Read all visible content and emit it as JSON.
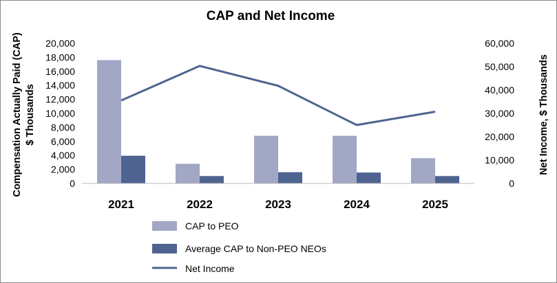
{
  "chart_data": {
    "type": "bar",
    "title": "CAP and Net Income",
    "categories": [
      "2021",
      "2022",
      "2023",
      "2024",
      "2025"
    ],
    "series": [
      {
        "name": "CAP to PEO",
        "type": "bar",
        "axis": "left",
        "color": "#a2a7c6",
        "values": [
          17600,
          2800,
          6800,
          6800,
          3600
        ]
      },
      {
        "name": "Average CAP to Non-PEO NEOs",
        "type": "bar",
        "axis": "left",
        "color": "#4f6391",
        "values": [
          3950,
          1050,
          1600,
          1550,
          1050
        ]
      },
      {
        "name": "Net Income",
        "type": "line",
        "axis": "right",
        "color": "#4f6391",
        "values": [
          35500,
          50300,
          41800,
          25000,
          30700
        ]
      }
    ],
    "y_left": {
      "label_line1": "Compensation Actually Paid (CAP)",
      "label_line2": "$ Thousands",
      "ylim": [
        0,
        20000
      ],
      "ticks": [
        "20,000",
        "18,000",
        "16,000",
        "14,000",
        "12,000",
        "10,000",
        "8,000",
        "6,000",
        "4,000",
        "2,000",
        "0"
      ]
    },
    "y_right": {
      "label": "Net Income, $ Thousands",
      "ylim": [
        0,
        60000
      ],
      "ticks": [
        "60,000",
        "50,000",
        "40,000",
        "30,000",
        "20,000",
        "10,000",
        "0"
      ]
    },
    "legend_position": "bottom",
    "grid": false
  }
}
